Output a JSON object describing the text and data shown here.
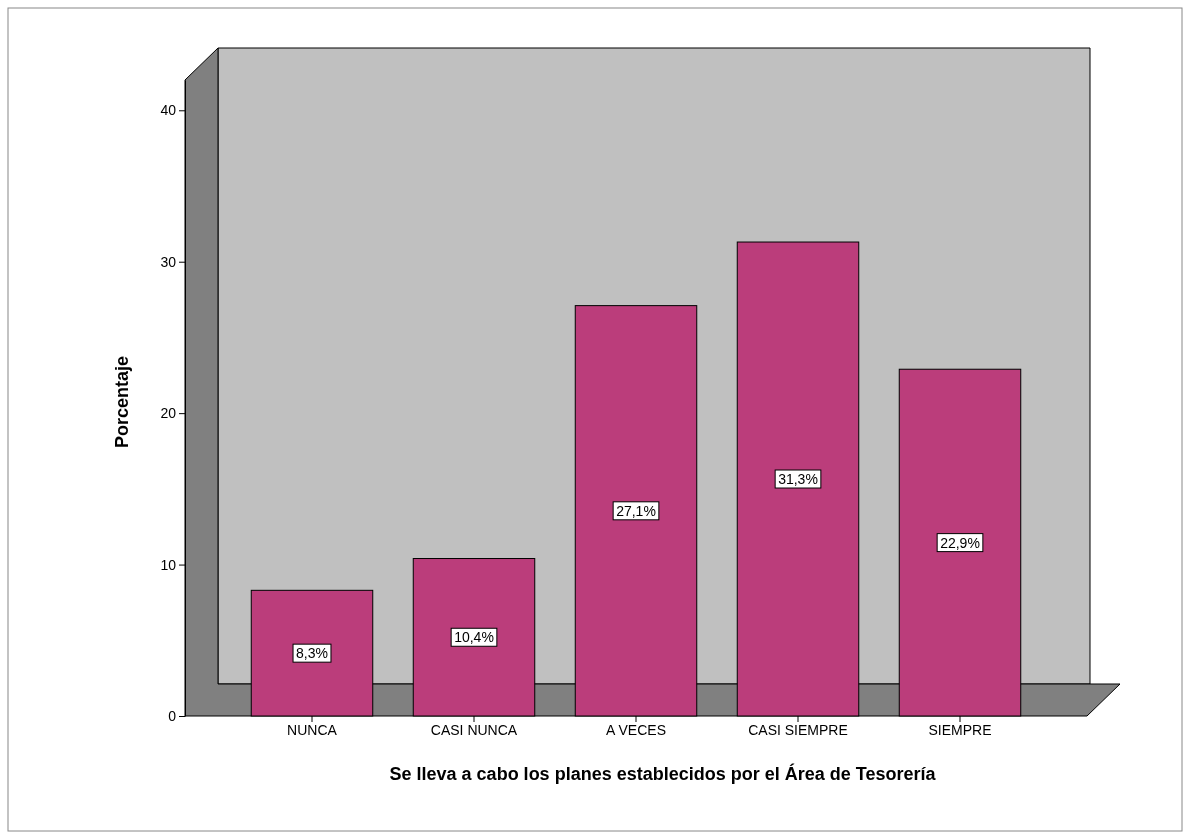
{
  "chart_data": {
    "type": "bar",
    "xlabel": "Se lleva a cabo los planes establecidos por el Área de Tesorería",
    "ylabel": "Porcentaje",
    "categories": [
      "NUNCA",
      "CASI NUNCA",
      "A VECES",
      "CASI SIEMPRE",
      "SIEMPRE"
    ],
    "values": [
      8.3,
      10.4,
      27.1,
      31.3,
      22.9
    ],
    "value_labels": [
      "8,3%",
      "10,4%",
      "27,1%",
      "31,3%",
      "22,9%"
    ],
    "color": "#bb3d7b",
    "ylim": [
      0,
      42
    ],
    "yticks": [
      0,
      10,
      20,
      30,
      40
    ],
    "grid": false
  }
}
